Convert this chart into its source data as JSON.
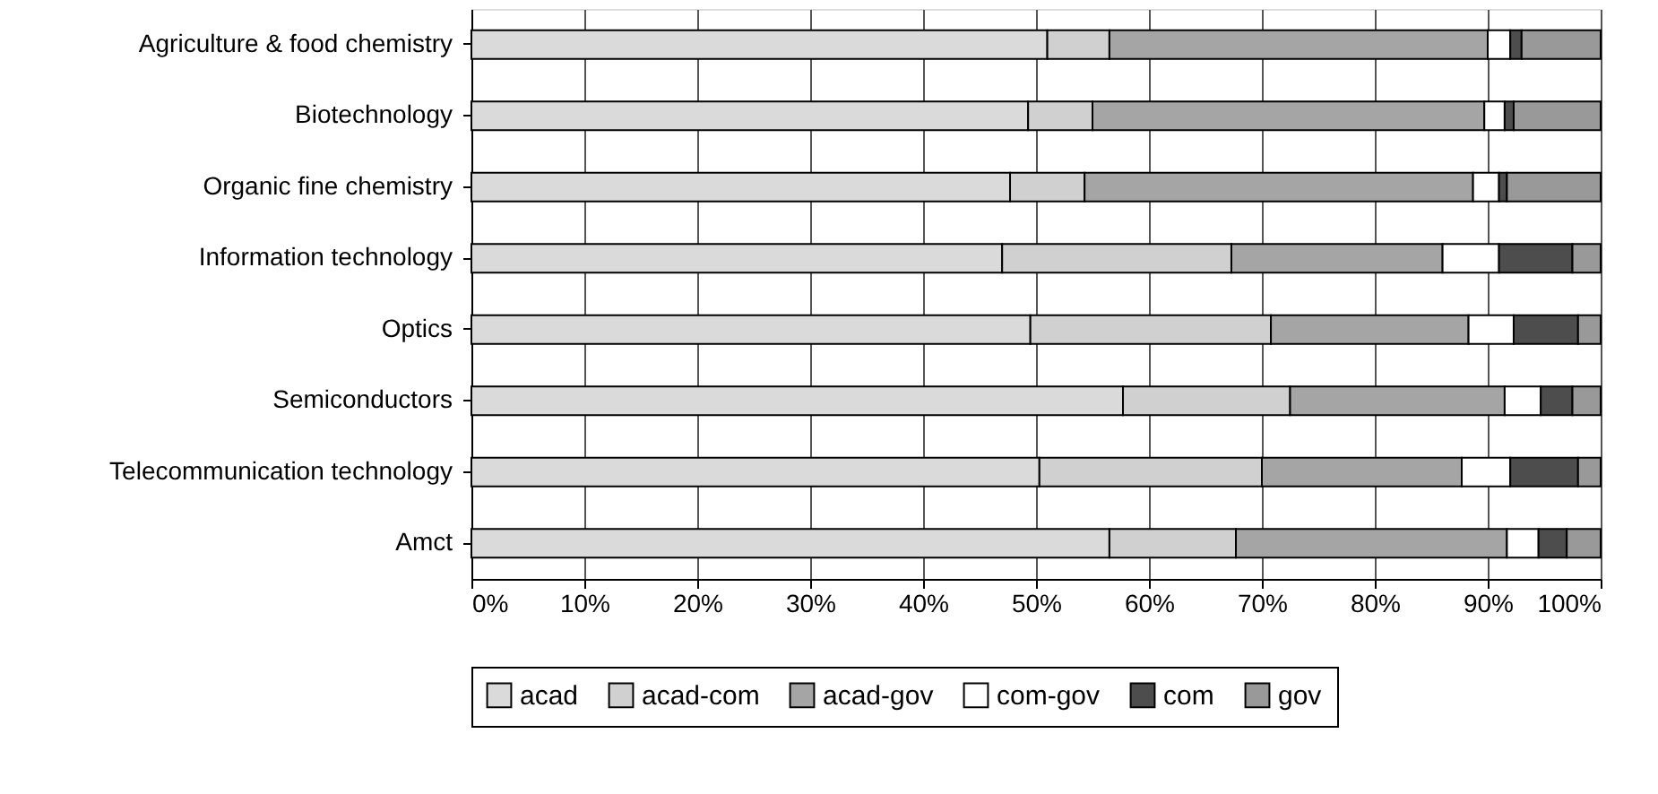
{
  "chart_data": {
    "type": "bar",
    "orientation": "horizontal",
    "stacked": true,
    "categories": [
      "Agriculture & food chemistry",
      "Biotechnology",
      "Organic fine chemistry",
      "Information technology",
      "Optics",
      "Semiconductors",
      "Telecommunication technology",
      "Amct"
    ],
    "series": [
      {
        "name": "acad",
        "color": "#dadada",
        "values": [
          51,
          49.3,
          47.7,
          47,
          49.5,
          57.7,
          50.3,
          56.5
        ]
      },
      {
        "name": "acad-com",
        "color": "#d0d0d0",
        "values": [
          5.5,
          5.7,
          6.6,
          20.3,
          21.3,
          14.8,
          19.7,
          11.2
        ]
      },
      {
        "name": "acad-gov",
        "color": "#a5a5a5",
        "values": [
          33.5,
          34.7,
          34.4,
          18.7,
          17.5,
          19,
          17.7,
          24
        ]
      },
      {
        "name": "com-gov",
        "color": "#ffffff",
        "values": [
          2,
          1.8,
          2.3,
          5,
          4,
          3.2,
          4.3,
          2.8
        ]
      },
      {
        "name": "com",
        "color": "#4d4d4d",
        "values": [
          1,
          0.8,
          0.7,
          6.5,
          5.7,
          2.8,
          6,
          2.5
        ]
      },
      {
        "name": "gov",
        "color": "#999999",
        "values": [
          7,
          7.7,
          8.3,
          2.5,
          2,
          2.5,
          2,
          3
        ]
      }
    ],
    "xlim": [
      0,
      100
    ],
    "xticks": [
      {
        "value": 0,
        "label": "0%"
      },
      {
        "value": 10,
        "label": "10%"
      },
      {
        "value": 20,
        "label": "20%"
      },
      {
        "value": 30,
        "label": "30%"
      },
      {
        "value": 40,
        "label": "40%"
      },
      {
        "value": 50,
        "label": "50%"
      },
      {
        "value": 60,
        "label": "60%"
      },
      {
        "value": 70,
        "label": "70%"
      },
      {
        "value": 80,
        "label": "80%"
      },
      {
        "value": 90,
        "label": "90%"
      },
      {
        "value": 100,
        "label": "100%"
      }
    ],
    "grid": "x",
    "legend": "bottom"
  }
}
